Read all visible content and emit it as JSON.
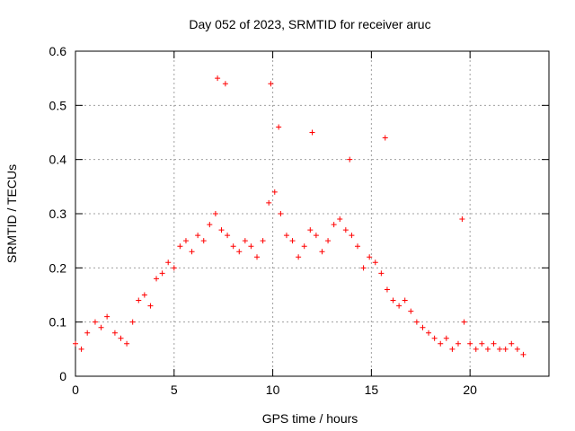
{
  "chart_data": {
    "type": "scatter",
    "title": "Day 052 of 2023, SRMTID for receiver aruc",
    "xlabel": "GPS time / hours",
    "ylabel": "SRMTID / TECUs",
    "xlim": [
      0,
      24
    ],
    "ylim": [
      0,
      0.6
    ],
    "xticks": [
      0,
      5,
      10,
      15,
      20
    ],
    "xtick_labels": [
      "0",
      "5",
      "10",
      "15",
      "20"
    ],
    "yticks": [
      0,
      0.1,
      0.2,
      0.3,
      0.4,
      0.5,
      0.6
    ],
    "ytick_labels": [
      "0",
      "0.1",
      "0.2",
      "0.3",
      "0.4",
      "0.5",
      "0.6"
    ],
    "grid": true,
    "marker": "plus",
    "color": "#ff0000",
    "series": [
      {
        "name": "SRMTID",
        "x": [
          0.0,
          0.3,
          0.6,
          1.0,
          1.3,
          1.6,
          2.0,
          2.3,
          2.6,
          2.9,
          3.2,
          3.5,
          3.8,
          4.1,
          4.4,
          4.7,
          5.0,
          5.3,
          5.6,
          5.9,
          6.2,
          6.5,
          6.8,
          7.1,
          7.4,
          7.7,
          8.0,
          8.3,
          8.6,
          8.9,
          9.2,
          9.5,
          9.8,
          10.1,
          10.4,
          10.7,
          11.0,
          11.3,
          11.6,
          11.9,
          12.2,
          12.5,
          12.8,
          13.1,
          13.4,
          13.7,
          14.0,
          14.3,
          14.6,
          14.9,
          15.2,
          15.5,
          15.8,
          16.1,
          16.4,
          16.7,
          17.0,
          17.3,
          17.6,
          17.9,
          18.2,
          18.5,
          18.8,
          19.1,
          19.4,
          19.7,
          20.0,
          20.3,
          20.6,
          20.9,
          21.2,
          21.5,
          21.8,
          22.1,
          22.4,
          22.7,
          7.2,
          7.6,
          9.9,
          10.3,
          12.0,
          13.9,
          15.7,
          19.6
        ],
        "y": [
          0.06,
          0.05,
          0.08,
          0.1,
          0.09,
          0.11,
          0.08,
          0.07,
          0.06,
          0.1,
          0.14,
          0.15,
          0.13,
          0.18,
          0.19,
          0.21,
          0.2,
          0.24,
          0.25,
          0.23,
          0.26,
          0.25,
          0.28,
          0.3,
          0.27,
          0.26,
          0.24,
          0.23,
          0.25,
          0.24,
          0.22,
          0.25,
          0.32,
          0.34,
          0.3,
          0.26,
          0.25,
          0.22,
          0.24,
          0.27,
          0.26,
          0.23,
          0.25,
          0.28,
          0.29,
          0.27,
          0.26,
          0.24,
          0.2,
          0.22,
          0.21,
          0.19,
          0.16,
          0.14,
          0.13,
          0.14,
          0.12,
          0.1,
          0.09,
          0.08,
          0.07,
          0.06,
          0.07,
          0.05,
          0.06,
          0.1,
          0.06,
          0.05,
          0.06,
          0.05,
          0.06,
          0.05,
          0.05,
          0.06,
          0.05,
          0.04,
          0.55,
          0.54,
          0.54,
          0.46,
          0.45,
          0.4,
          0.44,
          0.29
        ]
      }
    ]
  }
}
